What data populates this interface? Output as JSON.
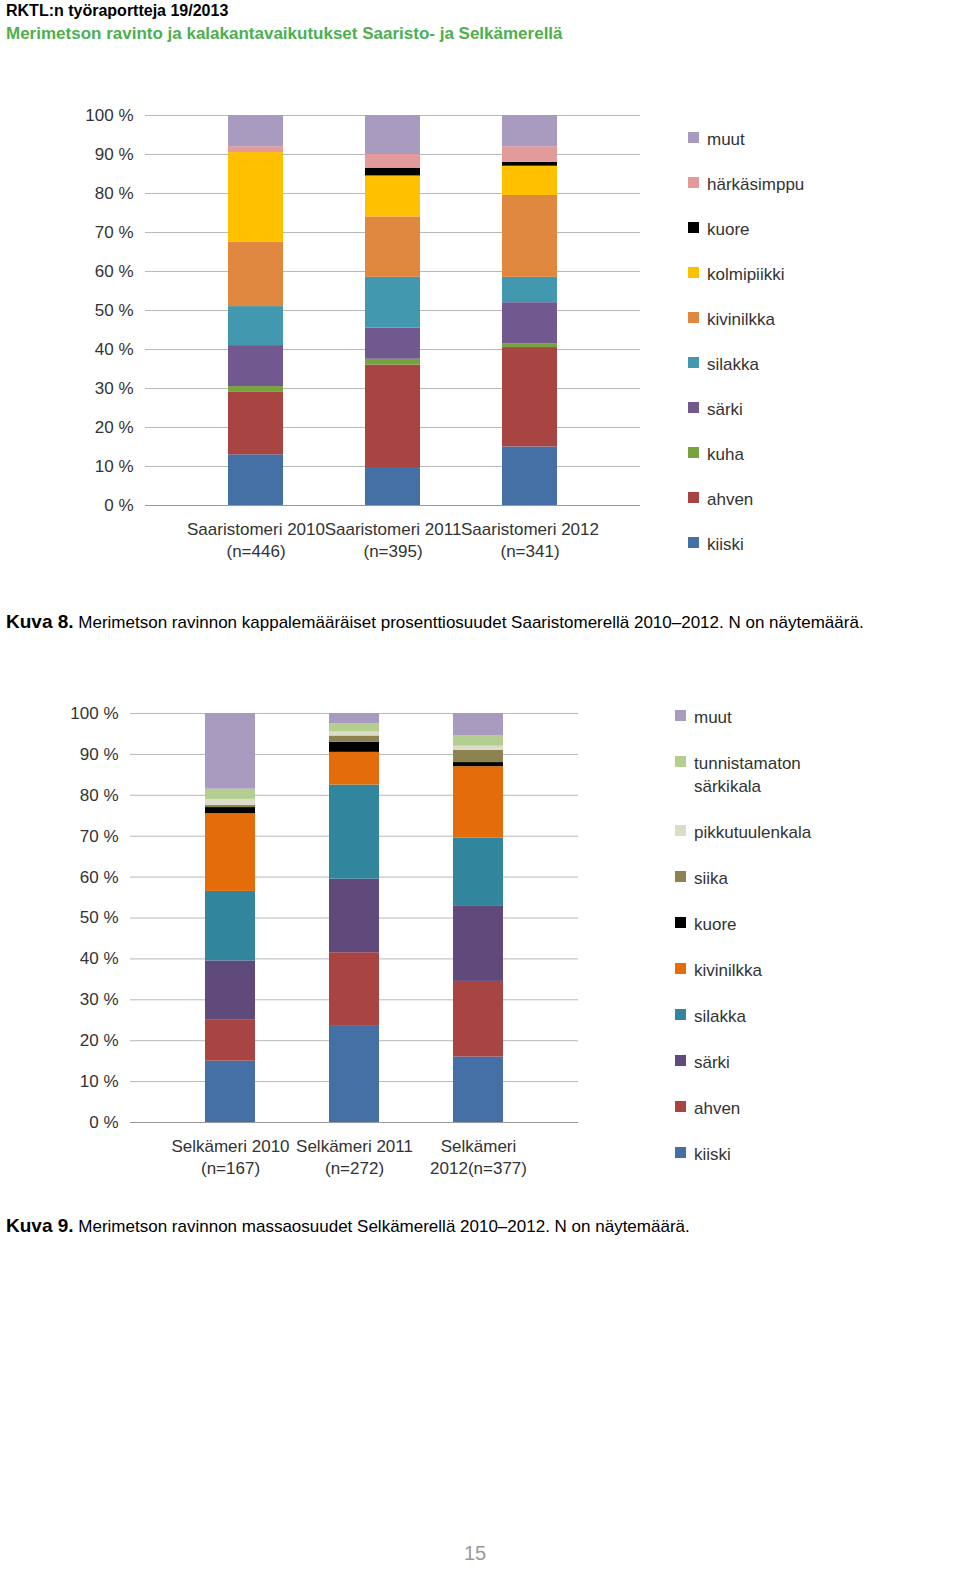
{
  "header": {
    "series": "RKTL:n työraportteja 19/2013",
    "title": "Merimetson ravinto ja kalakantavaikutukset Saaristo- ja Selkämerellä"
  },
  "chart_data": [
    {
      "type": "bar",
      "stacked": true,
      "grid": true,
      "legend": "right",
      "figure": "Kuva 8.",
      "title": "Merimetson ravinnon kappalemääräiset prosenttiosuudet Saaristomerellä 2010–2012. N on näytemäärä.",
      "categories": [
        "Saaristomeri 2010\n(n=446)",
        "Saaristomeri 2011\n(n=395)",
        "Saaristomeri 2012\n(n=341)"
      ],
      "ylim": [
        0,
        100
      ],
      "yticks": [
        {
          "value": 0,
          "label": "0 %"
        },
        {
          "value": 10,
          "label": "10 %"
        },
        {
          "value": 20,
          "label": "20 %"
        },
        {
          "value": 30,
          "label": "30 %"
        },
        {
          "value": 40,
          "label": "40 %"
        },
        {
          "value": 50,
          "label": "50 %"
        },
        {
          "value": 60,
          "label": "60 %"
        },
        {
          "value": 70,
          "label": "70 %"
        },
        {
          "value": 80,
          "label": "80 %"
        },
        {
          "value": 90,
          "label": "90 %"
        },
        {
          "value": 100,
          "label": "100 %"
        }
      ],
      "series": [
        {
          "name": "kiiski",
          "color": "#4470a5",
          "values": [
            13,
            9.5,
            15
          ]
        },
        {
          "name": "ahven",
          "color": "#a84442",
          "values": [
            16,
            26.5,
            25.5
          ]
        },
        {
          "name": "kuha",
          "color": "#77a33f",
          "values": [
            1.5,
            1.5,
            1
          ]
        },
        {
          "name": "särki",
          "color": "#71588f",
          "values": [
            10.5,
            8,
            10.5
          ]
        },
        {
          "name": "silakka",
          "color": "#4198af",
          "values": [
            10,
            13,
            6.5
          ]
        },
        {
          "name": "kivinilkka",
          "color": "#e0883f",
          "values": [
            16.5,
            15.5,
            21
          ]
        },
        {
          "name": "kolmipiikki",
          "color": "#ffc000",
          "values": [
            23,
            10.5,
            7.5
          ]
        },
        {
          "name": "kuore",
          "color": "#000000",
          "values": [
            0,
            2,
            1
          ]
        },
        {
          "name": "härkäsimppu",
          "color": "#e39a9a",
          "values": [
            1.5,
            3.5,
            4
          ]
        },
        {
          "name": "muut",
          "color": "#a99bc0",
          "values": [
            8,
            10,
            8
          ]
        }
      ]
    },
    {
      "type": "bar",
      "stacked": true,
      "grid": true,
      "legend": "right",
      "figure": "Kuva 9.",
      "title": "Merimetson ravinnon massaosuudet Selkämerellä 2010–2012. N on näytemäärä.",
      "categories": [
        "Selkämeri 2010\n(n=167)",
        "Selkämeri 2011\n(n=272)",
        "Selkämeri\n2012(n=377)"
      ],
      "ylim": [
        0,
        100
      ],
      "yticks": [
        {
          "value": 0,
          "label": "0 %"
        },
        {
          "value": 10,
          "label": "10 %"
        },
        {
          "value": 20,
          "label": "20 %"
        },
        {
          "value": 30,
          "label": "30 %"
        },
        {
          "value": 40,
          "label": "40 %"
        },
        {
          "value": 50,
          "label": "50 %"
        },
        {
          "value": 60,
          "label": "60 %"
        },
        {
          "value": 70,
          "label": "70 %"
        },
        {
          "value": 80,
          "label": "80 %"
        },
        {
          "value": 90,
          "label": "90 %"
        },
        {
          "value": 100,
          "label": "100 %"
        }
      ],
      "series": [
        {
          "name": "kiiski",
          "color": "#4470a5",
          "values": [
            15,
            23.5,
            16
          ]
        },
        {
          "name": "ahven",
          "color": "#a84442",
          "values": [
            10,
            18,
            18.5
          ]
        },
        {
          "name": "särki",
          "color": "#604a7b",
          "values": [
            14.5,
            18,
            18.5
          ]
        },
        {
          "name": "silakka",
          "color": "#31859c",
          "values": [
            17,
            23,
            16.5
          ]
        },
        {
          "name": "kivinilkka",
          "color": "#e46c0a",
          "values": [
            19,
            8,
            17.5
          ]
        },
        {
          "name": "kuore",
          "color": "#000000",
          "values": [
            1.5,
            2.5,
            1
          ]
        },
        {
          "name": "siika",
          "color": "#8c8350",
          "values": [
            0.5,
            1.5,
            3
          ]
        },
        {
          "name": "pikkutuulenkala",
          "color": "#dcdcc8",
          "values": [
            1.5,
            1,
            1
          ]
        },
        {
          "name": "tunnistamaton särkikala",
          "color": "#b3ce8f",
          "values": [
            2.5,
            2,
            2.5
          ]
        },
        {
          "name": "muut",
          "color": "#a99bc0",
          "values": [
            18.5,
            2.5,
            5.5
          ]
        }
      ]
    }
  ],
  "page_number": "15"
}
